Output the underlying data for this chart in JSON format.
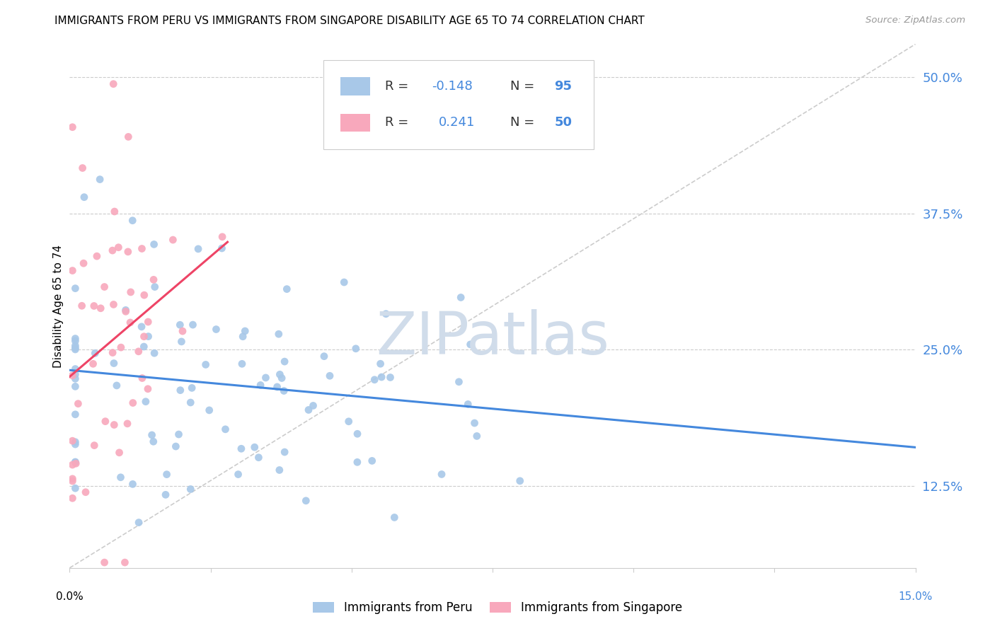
{
  "title": "IMMIGRANTS FROM PERU VS IMMIGRANTS FROM SINGAPORE DISABILITY AGE 65 TO 74 CORRELATION CHART",
  "source": "Source: ZipAtlas.com",
  "ylabel": "Disability Age 65 to 74",
  "yticks_labels": [
    "12.5%",
    "25.0%",
    "37.5%",
    "50.0%"
  ],
  "ytick_vals": [
    0.125,
    0.25,
    0.375,
    0.5
  ],
  "xlim": [
    0.0,
    0.15
  ],
  "ylim": [
    0.05,
    0.53
  ],
  "legend_peru": "Immigrants from Peru",
  "legend_singapore": "Immigrants from Singapore",
  "R_peru": "-0.148",
  "N_peru": "95",
  "R_singapore": "0.241",
  "N_singapore": "50",
  "color_peru": "#a8c8e8",
  "color_singapore": "#f8a8bc",
  "trendline_peru_color": "#4488dd",
  "trendline_singapore_color": "#ee4466",
  "trendline_diag_color": "#cccccc",
  "legend_text_color": "#4488dd",
  "background_color": "#ffffff",
  "watermark": "ZIPatlas",
  "watermark_color": "#d0dcea"
}
